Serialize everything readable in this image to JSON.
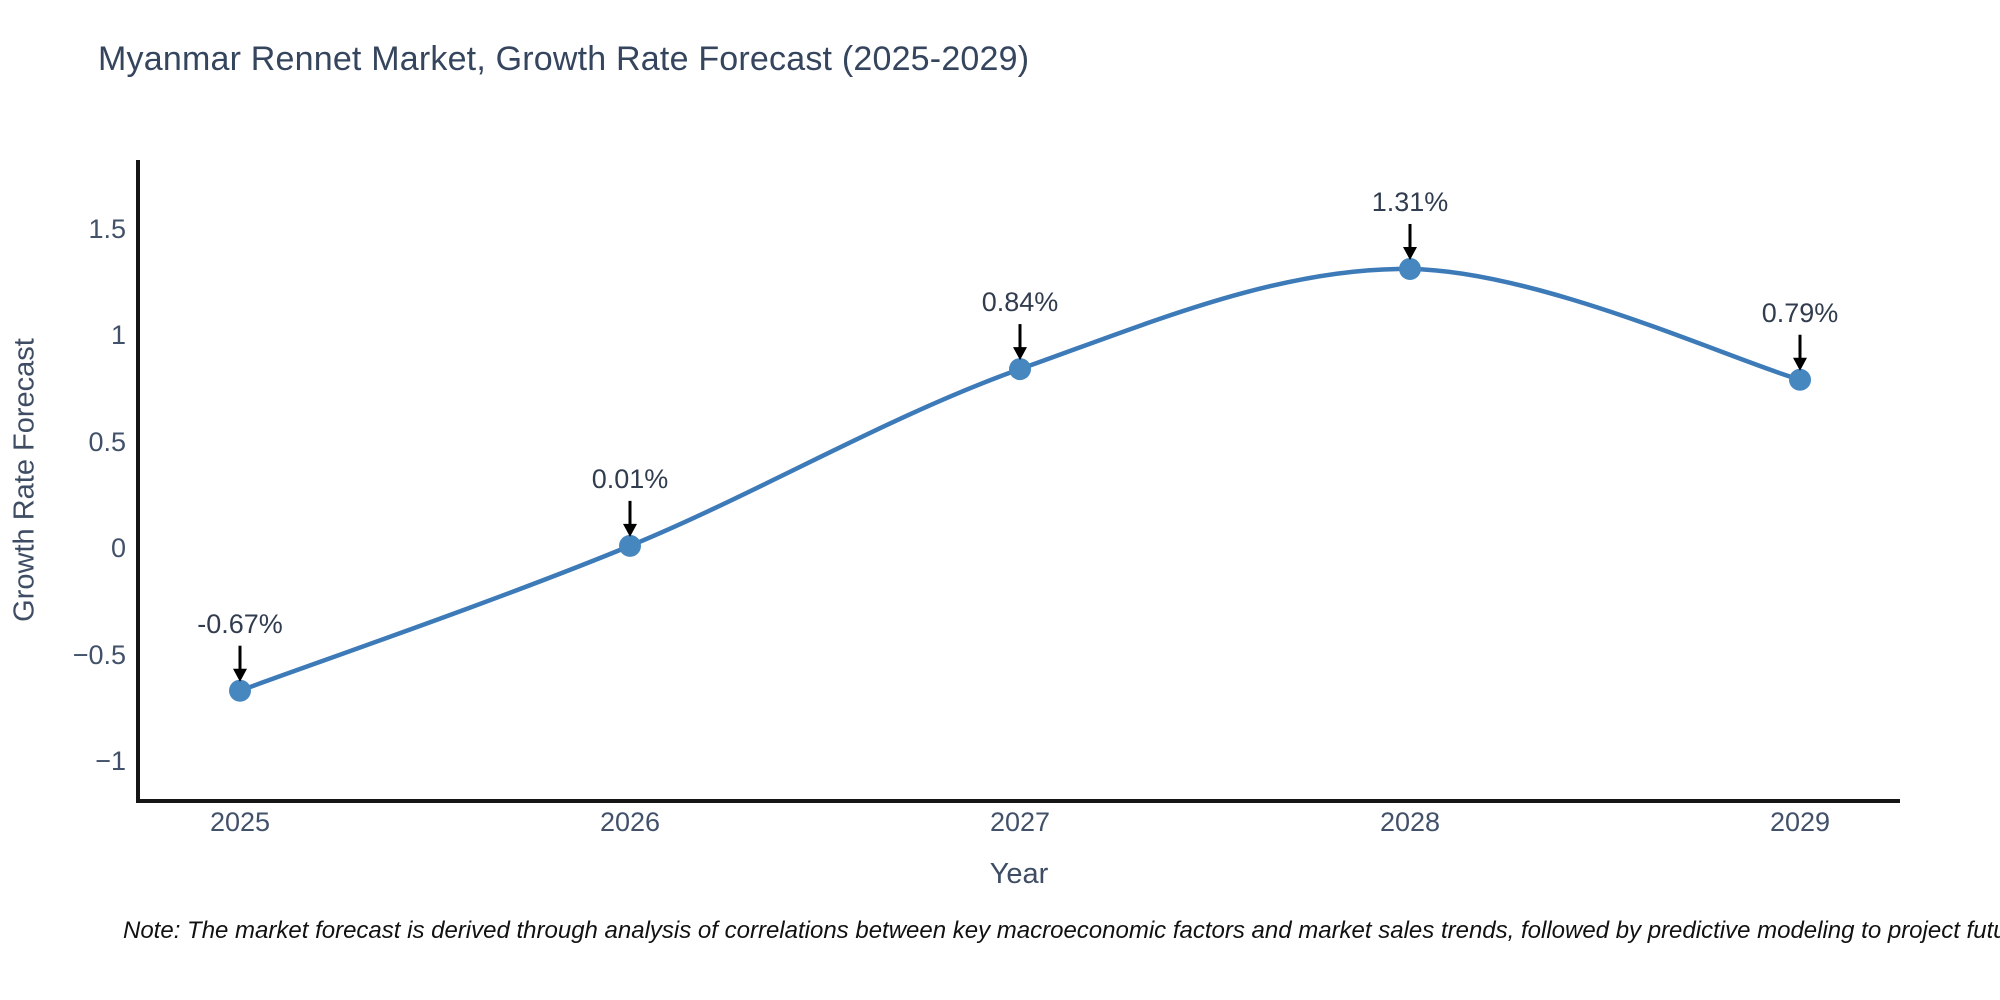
{
  "title": "Myanmar Rennet Market, Growth Rate Forecast (2025-2029)",
  "note": "Note: The market forecast is derived through analysis of correlations between key macroeconomic factors and market sales trends, followed by predictive modeling to project future sales.",
  "chart_data": {
    "type": "line",
    "title": "Myanmar Rennet Market, Growth Rate Forecast (2025-2029)",
    "xlabel": "Year",
    "ylabel": "Growth Rate Forecast",
    "categories": [
      "2025",
      "2026",
      "2027",
      "2028",
      "2029"
    ],
    "series": [
      {
        "name": "Growth Rate Forecast",
        "values": [
          -0.67,
          0.01,
          0.84,
          1.31,
          0.79
        ],
        "point_labels": [
          "-0.67%",
          "0.01%",
          "0.84%",
          "1.31%",
          "0.79%"
        ]
      }
    ],
    "yticks": [
      1.5,
      1,
      0.5,
      0,
      -0.5,
      -1
    ],
    "ytick_labels": [
      "1.5",
      "1",
      "0.5",
      "0",
      "−0.5",
      "−1"
    ],
    "ylim": [
      -1.19,
      1.82
    ],
    "line_shape": "spline",
    "grid": false,
    "legend_position": "none",
    "colors": {
      "line": "#3d7ab8",
      "marker": "#4787c0",
      "axis": "#151515",
      "annotation_arrow": "#000000",
      "annotation_text": "#313d4f",
      "tick_text": "#42516a",
      "title_text": "#36455e"
    }
  }
}
